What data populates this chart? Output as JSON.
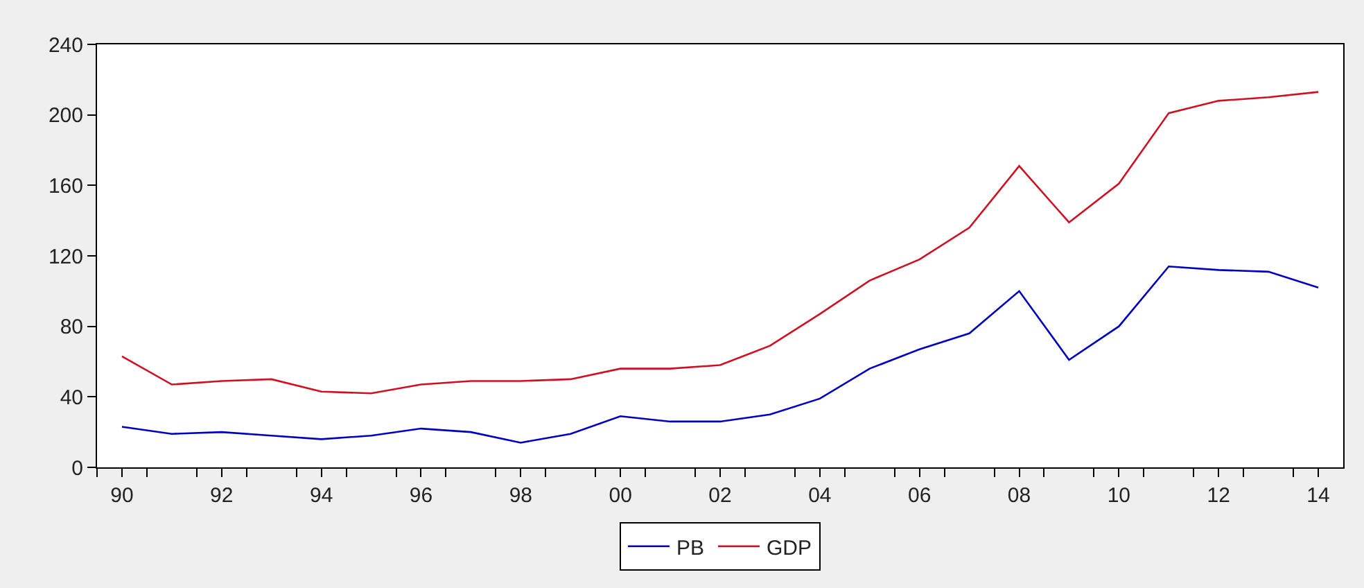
{
  "chart_data": {
    "type": "line",
    "x": [
      1990,
      1991,
      1992,
      1993,
      1994,
      1995,
      1996,
      1997,
      1998,
      1999,
      2000,
      2001,
      2002,
      2003,
      2004,
      2005,
      2006,
      2007,
      2008,
      2009,
      2010,
      2011,
      2012,
      2013,
      2014
    ],
    "series": [
      {
        "name": "PB",
        "color": "#0000c0",
        "values": [
          23,
          19,
          20,
          18,
          16,
          18,
          22,
          20,
          14,
          19,
          29,
          26,
          26,
          30,
          39,
          56,
          67,
          76,
          100,
          61,
          80,
          114,
          112,
          111,
          102
        ]
      },
      {
        "name": "GDP",
        "color": "#d01020",
        "values": [
          63,
          47,
          49,
          50,
          43,
          42,
          47,
          49,
          49,
          50,
          56,
          56,
          58,
          69,
          87,
          106,
          118,
          136,
          171,
          139,
          161,
          201,
          208,
          210,
          213
        ]
      }
    ],
    "xlim": [
      1989.5,
      2014.5
    ],
    "xticks": [
      {
        "value": 1990,
        "label": "90"
      },
      {
        "value": 1992,
        "label": "92"
      },
      {
        "value": 1994,
        "label": "94"
      },
      {
        "value": 1996,
        "label": "96"
      },
      {
        "value": 1998,
        "label": "98"
      },
      {
        "value": 2000,
        "label": "00"
      },
      {
        "value": 2002,
        "label": "02"
      },
      {
        "value": 2004,
        "label": "04"
      },
      {
        "value": 2006,
        "label": "06"
      },
      {
        "value": 2008,
        "label": "08"
      },
      {
        "value": 2010,
        "label": "10"
      },
      {
        "value": 2012,
        "label": "12"
      },
      {
        "value": 2014,
        "label": "14"
      }
    ],
    "ylim": [
      0,
      240
    ],
    "yticks": [
      0,
      40,
      80,
      120,
      160,
      200,
      240
    ],
    "legend": "bottom",
    "marker": "none",
    "line_style": "solid"
  }
}
